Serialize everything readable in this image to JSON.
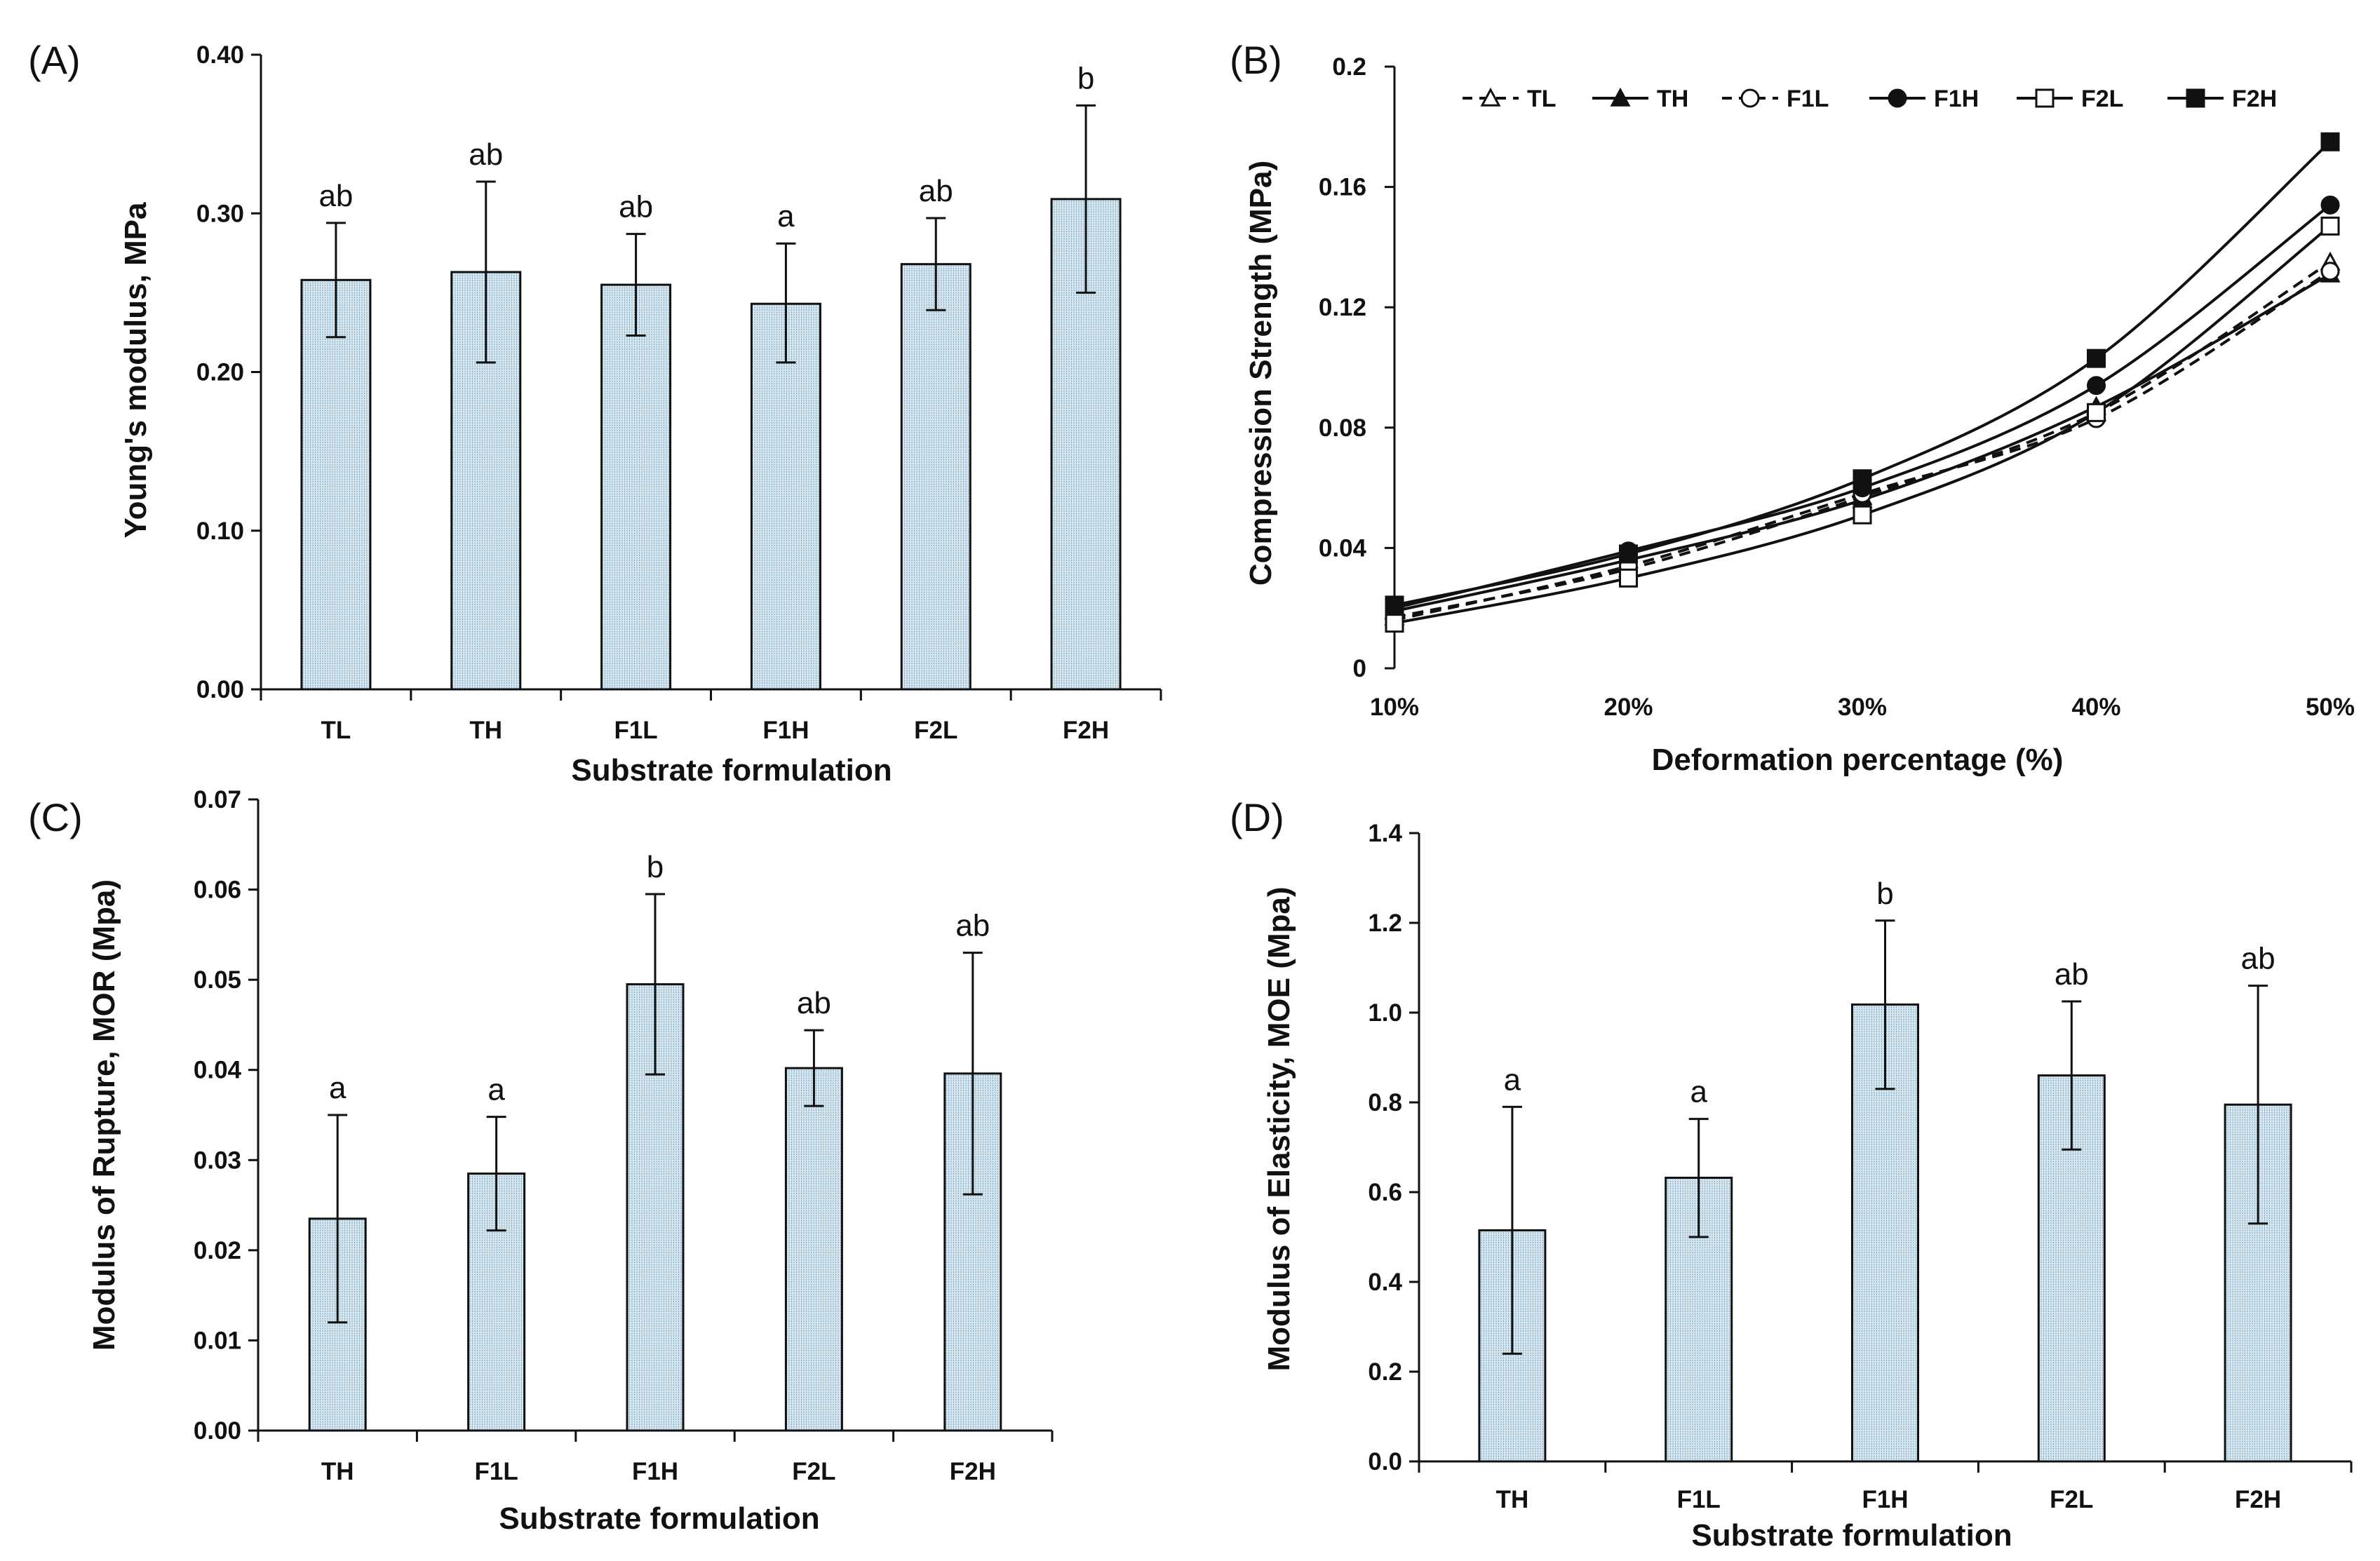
{
  "figure": {
    "colors": {
      "bar_fill": "#d6e6ee",
      "bar_stripe": "#6e9ab8",
      "ink": "#111111"
    }
  },
  "chart_data": [
    {
      "id": "A",
      "panel_label": "(A)",
      "type": "bar",
      "title": "",
      "xlabel": "Substrate formulation",
      "ylabel": "Young's modulus, MPa",
      "categories": [
        "TL",
        "TH",
        "F1L",
        "F1H",
        "F2L",
        "F2H"
      ],
      "values": [
        0.258,
        0.263,
        0.255,
        0.243,
        0.268,
        0.309
      ],
      "error_upper": [
        0.294,
        0.32,
        0.287,
        0.281,
        0.297,
        0.368
      ],
      "error_lower": [
        0.222,
        0.206,
        0.223,
        0.206,
        0.239,
        0.25
      ],
      "annotations": [
        "ab",
        "ab",
        "ab",
        "a",
        "ab",
        "b"
      ],
      "ylim": [
        0,
        0.4
      ],
      "yticks": [
        0,
        0.1,
        0.2,
        0.3,
        0.4
      ],
      "ytick_labels": [
        "0.00",
        "0.10",
        "0.20",
        "0.30",
        "0.40"
      ],
      "grid": false
    },
    {
      "id": "B",
      "panel_label": "(B)",
      "type": "line",
      "title": "",
      "xlabel": "Deformation percentage (%)",
      "ylabel": "Compression  Strength (MPa)",
      "x": [
        "10%",
        "20%",
        "30%",
        "40%",
        "50%"
      ],
      "series": [
        {
          "name": "TL",
          "marker": "triangle-open",
          "dashed": true,
          "values": [
            0.017,
            0.033,
            0.057,
            0.085,
            0.135
          ]
        },
        {
          "name": "TH",
          "marker": "triangle-filled",
          "dashed": false,
          "values": [
            0.019,
            0.036,
            0.056,
            0.087,
            0.131
          ]
        },
        {
          "name": "F1L",
          "marker": "circle-open",
          "dashed": true,
          "values": [
            0.016,
            0.034,
            0.058,
            0.083,
            0.132
          ]
        },
        {
          "name": "F1H",
          "marker": "circle-filled",
          "dashed": false,
          "values": [
            0.02,
            0.039,
            0.06,
            0.094,
            0.154
          ]
        },
        {
          "name": "F2L",
          "marker": "square-open",
          "dashed": false,
          "values": [
            0.015,
            0.03,
            0.051,
            0.085,
            0.147
          ]
        },
        {
          "name": "F2H",
          "marker": "square-filled",
          "dashed": false,
          "values": [
            0.021,
            0.038,
            0.063,
            0.103,
            0.175
          ]
        }
      ],
      "ylim": [
        0,
        0.2
      ],
      "yticks": [
        0,
        0.04,
        0.08,
        0.12,
        0.16,
        0.2
      ],
      "ytick_labels": [
        "0",
        "0.04",
        "0.08",
        "0.12",
        "0.16",
        "0.2"
      ],
      "legend_position": "top",
      "grid": false
    },
    {
      "id": "C",
      "panel_label": "(C)",
      "type": "bar",
      "title": "",
      "xlabel": "Substrate formulation",
      "ylabel": "Modulus of Rupture, MOR (Mpa)",
      "categories": [
        "TH",
        "F1L",
        "F1H",
        "F2L",
        "F2H"
      ],
      "values": [
        0.0235,
        0.0285,
        0.0495,
        0.0402,
        0.0396
      ],
      "error_upper": [
        0.035,
        0.0348,
        0.0595,
        0.0444,
        0.053
      ],
      "error_lower": [
        0.012,
        0.0222,
        0.0395,
        0.036,
        0.0262
      ],
      "annotations": [
        "a",
        "a",
        "b",
        "ab",
        "ab"
      ],
      "ylim": [
        0,
        0.07
      ],
      "yticks": [
        0,
        0.01,
        0.02,
        0.03,
        0.04,
        0.05,
        0.06,
        0.07
      ],
      "ytick_labels": [
        "0.00",
        "0.01",
        "0.02",
        "0.03",
        "0.04",
        "0.05",
        "0.06",
        "0.07"
      ],
      "grid": false
    },
    {
      "id": "D",
      "panel_label": "(D)",
      "type": "bar",
      "title": "",
      "xlabel": "Substrate formulation",
      "ylabel": "Modulus of Elasticity, MOE (Mpa)",
      "categories": [
        "TH",
        "F1L",
        "F1H",
        "F2L",
        "F2H"
      ],
      "values": [
        0.515,
        0.632,
        1.018,
        0.86,
        0.795
      ],
      "error_upper": [
        0.79,
        0.763,
        1.205,
        1.025,
        1.06
      ],
      "error_lower": [
        0.24,
        0.5,
        0.83,
        0.695,
        0.53
      ],
      "annotations": [
        "a",
        "a",
        "b",
        "ab",
        "ab"
      ],
      "ylim": [
        0,
        1.4
      ],
      "yticks": [
        0,
        0.2,
        0.4,
        0.6,
        0.8,
        1.0,
        1.2,
        1.4
      ],
      "ytick_labels": [
        "0.0",
        "0.2",
        "0.4",
        "0.6",
        "0.8",
        "1.0",
        "1.2",
        "1.4"
      ],
      "grid": false
    }
  ]
}
